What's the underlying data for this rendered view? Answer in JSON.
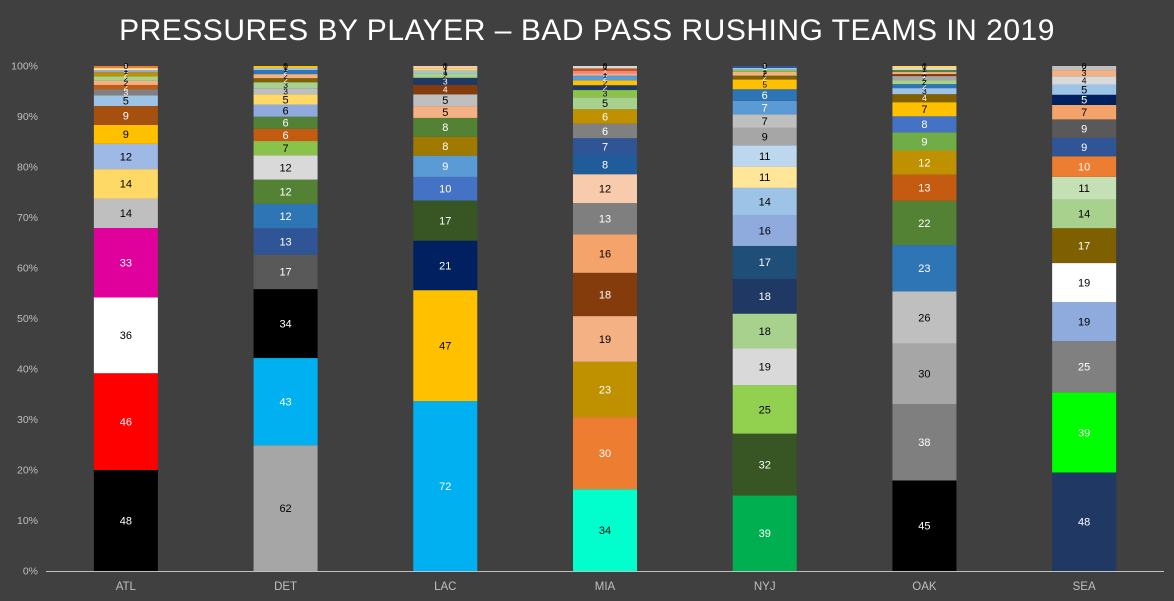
{
  "chart_data": {
    "type": "bar",
    "stacked": true,
    "normalized": true,
    "title": "PRESSURES BY PLAYER – BAD PASS RUSHING TEAMS IN 2019",
    "xlabel": "",
    "ylabel": "",
    "ylim": [
      0,
      100
    ],
    "y_ticks": [
      "0%",
      "10%",
      "20%",
      "30%",
      "40%",
      "50%",
      "60%",
      "70%",
      "80%",
      "90%",
      "100%"
    ],
    "grid": false,
    "legend": "none",
    "categories": [
      "ATL",
      "DET",
      "LAC",
      "MIA",
      "NYJ",
      "OAK",
      "SEA"
    ],
    "bars": [
      {
        "category": "ATL",
        "segments": [
          {
            "value": 48,
            "color": "#000000"
          },
          {
            "value": 46,
            "color": "#ff0000"
          },
          {
            "value": 36,
            "color": "#ffffff"
          },
          {
            "value": 33,
            "color": "#e0009c"
          },
          {
            "value": 14,
            "color": "#bfbfbf"
          },
          {
            "value": 14,
            "color": "#ffd966"
          },
          {
            "value": 12,
            "color": "#9eb9e6"
          },
          {
            "value": 9,
            "color": "#ffc000"
          },
          {
            "value": 9,
            "color": "#a5500f"
          },
          {
            "value": 5,
            "color": "#9dc3e6"
          },
          {
            "value": 3,
            "color": "#808080"
          },
          {
            "value": 2,
            "color": "#c55a11"
          },
          {
            "value": 2,
            "color": "#f4b183"
          },
          {
            "value": 2,
            "color": "#a9d18e"
          },
          {
            "value": 2,
            "color": "#bf9000"
          },
          {
            "value": 1,
            "color": "#8faadc"
          },
          {
            "value": 1,
            "color": "#ffe699"
          },
          {
            "value": 1,
            "color": "#ed7d31"
          },
          {
            "value": 0,
            "color": "#d9d9d9"
          }
        ]
      },
      {
        "category": "DET",
        "segments": [
          {
            "value": 62,
            "color": "#a6a6a6"
          },
          {
            "value": 43,
            "color": "#00b0f0"
          },
          {
            "value": 34,
            "color": "#000000"
          },
          {
            "value": 17,
            "color": "#595959"
          },
          {
            "value": 13,
            "color": "#2f5597"
          },
          {
            "value": 12,
            "color": "#2e75b6"
          },
          {
            "value": 12,
            "color": "#548235"
          },
          {
            "value": 12,
            "color": "#d9d9d9"
          },
          {
            "value": 7,
            "color": "#8bc34a"
          },
          {
            "value": 6,
            "color": "#c55a11"
          },
          {
            "value": 6,
            "color": "#538135"
          },
          {
            "value": 6,
            "color": "#8faadc"
          },
          {
            "value": 5,
            "color": "#ffd966"
          },
          {
            "value": 3,
            "color": "#bfbfbf"
          },
          {
            "value": 3,
            "color": "#a9d18e"
          },
          {
            "value": 2,
            "color": "#806000"
          },
          {
            "value": 2,
            "color": "#f4b183"
          },
          {
            "value": 2,
            "color": "#2e75b6"
          },
          {
            "value": 1,
            "color": "#9dc3e6"
          },
          {
            "value": 1,
            "color": "#ffc000"
          },
          {
            "value": 0,
            "color": "#d9d9d9"
          }
        ]
      },
      {
        "category": "LAC",
        "segments": [
          {
            "value": 72,
            "color": "#00b0f0"
          },
          {
            "value": 47,
            "color": "#ffc000"
          },
          {
            "value": 21,
            "color": "#002060"
          },
          {
            "value": 17,
            "color": "#375623"
          },
          {
            "value": 10,
            "color": "#4472c4"
          },
          {
            "value": 9,
            "color": "#5b9bd5"
          },
          {
            "value": 8,
            "color": "#a07a00"
          },
          {
            "value": 8,
            "color": "#548235"
          },
          {
            "value": 5,
            "color": "#f4b183"
          },
          {
            "value": 5,
            "color": "#bfbfbf"
          },
          {
            "value": 4,
            "color": "#843c0c"
          },
          {
            "value": 3,
            "color": "#1f3864"
          },
          {
            "value": 2,
            "color": "#a9d18e"
          },
          {
            "value": 1,
            "color": "#9dc3e6"
          },
          {
            "value": 1,
            "color": "#ffd966"
          },
          {
            "value": 1,
            "color": "#f8cbad"
          },
          {
            "value": 0,
            "color": "#d9d9d9"
          }
        ]
      },
      {
        "category": "MIA",
        "segments": [
          {
            "value": 34,
            "color": "#00ffcc"
          },
          {
            "value": 30,
            "color": "#ed7d31"
          },
          {
            "value": 23,
            "color": "#bf9000"
          },
          {
            "value": 19,
            "color": "#f4b183"
          },
          {
            "value": 18,
            "color": "#843c0c"
          },
          {
            "value": 16,
            "color": "#f4a46a"
          },
          {
            "value": 13,
            "color": "#7f7f7f"
          },
          {
            "value": 12,
            "color": "#f8cbad"
          },
          {
            "value": 8,
            "color": "#1f5c99"
          },
          {
            "value": 7,
            "color": "#2f5597"
          },
          {
            "value": 6,
            "color": "#808080"
          },
          {
            "value": 6,
            "color": "#bf9000"
          },
          {
            "value": 5,
            "color": "#a9d18e"
          },
          {
            "value": 3,
            "color": "#8bc34a"
          },
          {
            "value": 2,
            "color": "#1f3864"
          },
          {
            "value": 2,
            "color": "#ffc000"
          },
          {
            "value": 2,
            "color": "#5b9bd5"
          },
          {
            "value": 1,
            "color": "#f4b183"
          },
          {
            "value": 1,
            "color": "#ff7c80"
          },
          {
            "value": 1,
            "color": "#c55a11"
          },
          {
            "value": 1,
            "color": "#d9d9d9"
          },
          {
            "value": 0,
            "color": "#ffffff"
          }
        ]
      },
      {
        "category": "NYJ",
        "segments": [
          {
            "value": 39,
            "color": "#00b050"
          },
          {
            "value": 32,
            "color": "#375623"
          },
          {
            "value": 25,
            "color": "#92d050"
          },
          {
            "value": 19,
            "color": "#d9d9d9"
          },
          {
            "value": 18,
            "color": "#a9d18e"
          },
          {
            "value": 18,
            "color": "#1f3864"
          },
          {
            "value": 17,
            "color": "#1f4e79"
          },
          {
            "value": 16,
            "color": "#8faadc"
          },
          {
            "value": 14,
            "color": "#9dc3e6"
          },
          {
            "value": 11,
            "color": "#ffe699"
          },
          {
            "value": 11,
            "color": "#bdd7ee"
          },
          {
            "value": 9,
            "color": "#a6a6a6"
          },
          {
            "value": 7,
            "color": "#bfbfbf"
          },
          {
            "value": 7,
            "color": "#5b9bd5"
          },
          {
            "value": 6,
            "color": "#2e75b6"
          },
          {
            "value": 5,
            "color": "#ffc000"
          },
          {
            "value": 2,
            "color": "#806000"
          },
          {
            "value": 2,
            "color": "#f4b183"
          },
          {
            "value": 1,
            "color": "#8bc34a"
          },
          {
            "value": 1,
            "color": "#9dc3e6"
          },
          {
            "value": 1,
            "color": "#2f5597"
          },
          {
            "value": 0,
            "color": "#d9d9d9"
          }
        ]
      },
      {
        "category": "OAK",
        "segments": [
          {
            "value": 45,
            "color": "#000000"
          },
          {
            "value": 38,
            "color": "#7f7f7f"
          },
          {
            "value": 30,
            "color": "#a6a6a6"
          },
          {
            "value": 26,
            "color": "#bfbfbf"
          },
          {
            "value": 23,
            "color": "#2e75b6"
          },
          {
            "value": 22,
            "color": "#548235"
          },
          {
            "value": 13,
            "color": "#c55a11"
          },
          {
            "value": 12,
            "color": "#bf9000"
          },
          {
            "value": 9,
            "color": "#70ad47"
          },
          {
            "value": 8,
            "color": "#4472c4"
          },
          {
            "value": 7,
            "color": "#ffc000"
          },
          {
            "value": 4,
            "color": "#806000"
          },
          {
            "value": 3,
            "color": "#9dc3e6"
          },
          {
            "value": 2,
            "color": "#2e75b6"
          },
          {
            "value": 2,
            "color": "#a9d18e"
          },
          {
            "value": 2,
            "color": "#a6a6a6"
          },
          {
            "value": 1,
            "color": "#843c0c"
          },
          {
            "value": 1,
            "color": "#f4b183"
          },
          {
            "value": 1,
            "color": "#548235"
          },
          {
            "value": 1,
            "color": "#d9d9d9"
          },
          {
            "value": 1,
            "color": "#ffd966"
          },
          {
            "value": 0,
            "color": "#ffffff"
          }
        ]
      },
      {
        "category": "SEA",
        "segments": [
          {
            "value": 48,
            "color": "#1f3864"
          },
          {
            "value": 39,
            "color": "#00ff00"
          },
          {
            "value": 25,
            "color": "#808080"
          },
          {
            "value": 19,
            "color": "#8faadc"
          },
          {
            "value": 19,
            "color": "#ffffff"
          },
          {
            "value": 17,
            "color": "#7f6000"
          },
          {
            "value": 14,
            "color": "#a9d18e"
          },
          {
            "value": 11,
            "color": "#c5e0b4"
          },
          {
            "value": 10,
            "color": "#ed7d31"
          },
          {
            "value": 9,
            "color": "#2f5597"
          },
          {
            "value": 9,
            "color": "#595959"
          },
          {
            "value": 7,
            "color": "#f4a46a"
          },
          {
            "value": 5,
            "color": "#002060"
          },
          {
            "value": 5,
            "color": "#9dc3e6"
          },
          {
            "value": 4,
            "color": "#d9d9d9"
          },
          {
            "value": 3,
            "color": "#f4b183"
          },
          {
            "value": 2,
            "color": "#bfbfbf"
          },
          {
            "value": 0,
            "color": "#ffe699"
          }
        ]
      }
    ]
  },
  "colors": {
    "background": "#404040",
    "text": "#ffffff",
    "axis": "#bfbfbf"
  }
}
